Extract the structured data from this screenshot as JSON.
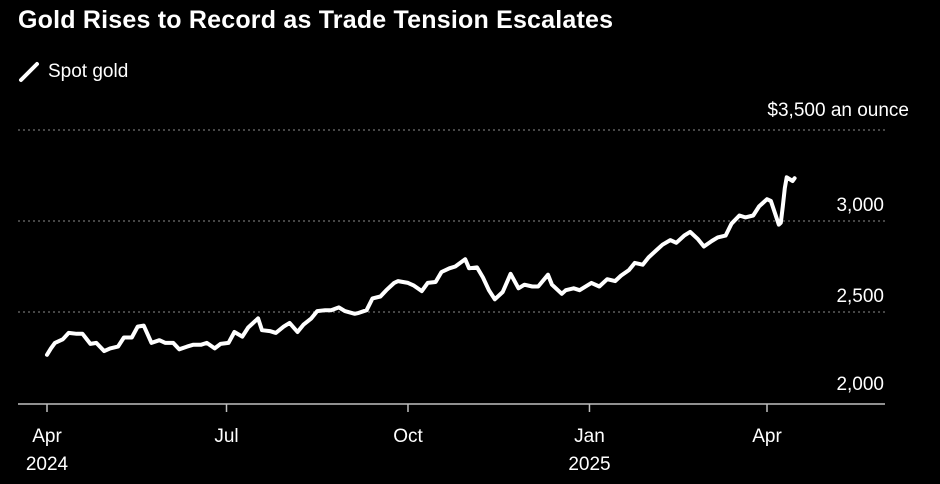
{
  "chart_data": {
    "type": "line",
    "title": "Gold Rises to Record as Trade Tension Escalates",
    "xlabel": "",
    "ylabel": "",
    "legend": {
      "placement": "top-left",
      "entries": [
        "Spot gold"
      ]
    },
    "colors": {
      "background": "#000000",
      "line": "#ffffff",
      "grid": "#8c8c8c"
    },
    "y_axis": {
      "position": "right",
      "ylim": [
        1950,
        3550
      ],
      "ticks": [
        {
          "value": 2000,
          "label": "2,000"
        },
        {
          "value": 2500,
          "label": "2,500"
        },
        {
          "value": 3000,
          "label": "3,000"
        },
        {
          "value": 3500,
          "label": "$3,500 an ounce"
        }
      ],
      "grid": "dotted"
    },
    "x_axis": {
      "xlim": [
        "2024-03-25",
        "2025-05-18"
      ],
      "ticks": [
        {
          "date": "2024-04-01",
          "line1": "Apr",
          "line2": "2024"
        },
        {
          "date": "2024-07-01",
          "line1": "Jul",
          "line2": ""
        },
        {
          "date": "2024-10-01",
          "line1": "Oct",
          "line2": ""
        },
        {
          "date": "2025-01-01",
          "line1": "Jan",
          "line2": "2025"
        },
        {
          "date": "2025-04-01",
          "line1": "Apr",
          "line2": ""
        }
      ]
    },
    "series": [
      {
        "name": "Spot gold",
        "x": [
          "2024-04-01",
          "2024-04-03",
          "2024-04-05",
          "2024-04-09",
          "2024-04-12",
          "2024-04-16",
          "2024-04-19",
          "2024-04-23",
          "2024-04-26",
          "2024-04-30",
          "2024-05-03",
          "2024-05-07",
          "2024-05-10",
          "2024-05-14",
          "2024-05-17",
          "2024-05-20",
          "2024-05-24",
          "2024-05-28",
          "2024-05-31",
          "2024-06-04",
          "2024-06-07",
          "2024-06-11",
          "2024-06-14",
          "2024-06-18",
          "2024-06-21",
          "2024-06-25",
          "2024-06-28",
          "2024-07-02",
          "2024-07-05",
          "2024-07-09",
          "2024-07-12",
          "2024-07-17",
          "2024-07-19",
          "2024-07-23",
          "2024-07-26",
          "2024-07-30",
          "2024-08-02",
          "2024-08-06",
          "2024-08-09",
          "2024-08-13",
          "2024-08-16",
          "2024-08-20",
          "2024-08-23",
          "2024-08-27",
          "2024-08-30",
          "2024-09-04",
          "2024-09-06",
          "2024-09-10",
          "2024-09-13",
          "2024-09-17",
          "2024-09-20",
          "2024-09-24",
          "2024-09-26",
          "2024-10-01",
          "2024-10-04",
          "2024-10-08",
          "2024-10-11",
          "2024-10-15",
          "2024-10-18",
          "2024-10-22",
          "2024-10-25",
          "2024-10-30",
          "2024-11-01",
          "2024-11-05",
          "2024-11-08",
          "2024-11-11",
          "2024-11-14",
          "2024-11-18",
          "2024-11-22",
          "2024-11-26",
          "2024-11-29",
          "2024-12-03",
          "2024-12-06",
          "2024-12-11",
          "2024-12-13",
          "2024-12-18",
          "2024-12-20",
          "2024-12-24",
          "2024-12-27",
          "2025-01-02",
          "2025-01-06",
          "2025-01-10",
          "2025-01-14",
          "2025-01-17",
          "2025-01-21",
          "2025-01-24",
          "2025-01-28",
          "2025-01-31",
          "2025-02-04",
          "2025-02-07",
          "2025-02-11",
          "2025-02-14",
          "2025-02-18",
          "2025-02-21",
          "2025-02-25",
          "2025-02-28",
          "2025-03-04",
          "2025-03-07",
          "2025-03-11",
          "2025-03-14",
          "2025-03-18",
          "2025-03-21",
          "2025-03-25",
          "2025-03-28",
          "2025-04-01",
          "2025-04-03",
          "2025-04-07",
          "2025-04-08",
          "2025-04-09",
          "2025-04-10",
          "2025-04-11",
          "2025-04-14",
          "2025-04-15"
        ],
        "values": [
          2265,
          2300,
          2330,
          2350,
          2385,
          2380,
          2380,
          2325,
          2330,
          2285,
          2300,
          2310,
          2360,
          2360,
          2420,
          2425,
          2330,
          2345,
          2330,
          2330,
          2295,
          2310,
          2320,
          2320,
          2330,
          2300,
          2325,
          2330,
          2390,
          2365,
          2415,
          2465,
          2400,
          2395,
          2385,
          2420,
          2440,
          2390,
          2430,
          2465,
          2505,
          2510,
          2510,
          2525,
          2505,
          2490,
          2495,
          2510,
          2575,
          2585,
          2620,
          2660,
          2670,
          2660,
          2645,
          2615,
          2660,
          2665,
          2720,
          2740,
          2750,
          2790,
          2740,
          2745,
          2690,
          2620,
          2570,
          2610,
          2710,
          2630,
          2650,
          2640,
          2640,
          2705,
          2650,
          2600,
          2620,
          2630,
          2620,
          2660,
          2640,
          2680,
          2670,
          2700,
          2730,
          2770,
          2760,
          2800,
          2840,
          2870,
          2895,
          2880,
          2920,
          2940,
          2900,
          2860,
          2890,
          2910,
          2920,
          2985,
          3030,
          3020,
          3030,
          3080,
          3120,
          3110,
          2980,
          2990,
          3080,
          3180,
          3240,
          3220,
          3235
        ]
      }
    ]
  }
}
